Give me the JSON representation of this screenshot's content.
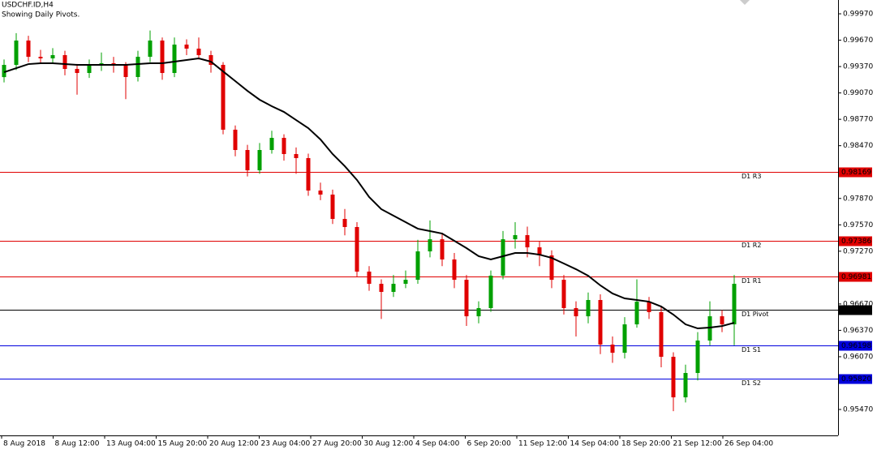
{
  "chart_data": {
    "type": "candlestick",
    "title": "USDCHF.ID,H4",
    "subtitle": "Showing Daily Pivots.",
    "ylim": [
      0.95175,
      1.00127
    ],
    "yticks": [
      {
        "value": 0.9997,
        "label": "0.99970"
      },
      {
        "value": 0.9967,
        "label": "0.99670"
      },
      {
        "value": 0.9937,
        "label": "0.99370"
      },
      {
        "value": 0.9907,
        "label": "0.99070"
      },
      {
        "value": 0.9877,
        "label": "0.98770"
      },
      {
        "value": 0.9847,
        "label": "0.98470"
      },
      {
        "value": 0.9787,
        "label": "0.97870"
      },
      {
        "value": 0.9757,
        "label": "0.97570"
      },
      {
        "value": 0.9727,
        "label": "0.97270"
      },
      {
        "value": 0.9667,
        "label": "0.96670"
      },
      {
        "value": 0.9637,
        "label": "0.96370"
      },
      {
        "value": 0.9607,
        "label": "0.96070"
      },
      {
        "value": 0.9547,
        "label": "0.95470"
      }
    ],
    "x_labels": [
      "8 Aug 2018",
      "8 Aug 12:00",
      "13 Aug 04:00",
      "15 Aug 20:00",
      "20 Aug 12:00",
      "23 Aug 04:00",
      "27 Aug 20:00",
      "30 Aug 12:00",
      "4 Sep 04:00",
      "6 Sep 20:00",
      "11 Sep 12:00",
      "14 Sep 04:00",
      "18 Sep 20:00",
      "21 Sep 12:00",
      "26 Sep 04:00"
    ],
    "up_color": "#00a000",
    "down_color": "#e00000",
    "ma_color": "#000000",
    "ohlc": [
      [
        0.9925,
        0.9945,
        0.9919,
        0.99389
      ],
      [
        0.99389,
        0.9975,
        0.9933,
        0.99666
      ],
      [
        0.99666,
        0.9972,
        0.9942,
        0.99481
      ],
      [
        0.99481,
        0.9956,
        0.994,
        0.99463
      ],
      [
        0.99463,
        0.9958,
        0.994,
        0.995
      ],
      [
        0.995,
        0.9955,
        0.9927,
        0.99343
      ],
      [
        0.99343,
        0.994,
        0.9905,
        0.99297
      ],
      [
        0.99297,
        0.9945,
        0.9924,
        0.99389
      ],
      [
        0.99389,
        0.9953,
        0.9932,
        0.99408
      ],
      [
        0.99408,
        0.9948,
        0.993,
        0.99389
      ],
      [
        0.99389,
        0.9942,
        0.99,
        0.99251
      ],
      [
        0.99251,
        0.9955,
        0.992,
        0.99481
      ],
      [
        0.99481,
        0.9978,
        0.9942,
        0.99666
      ],
      [
        0.99666,
        0.997,
        0.9922,
        0.99297
      ],
      [
        0.99297,
        0.997,
        0.9925,
        0.9962
      ],
      [
        0.9962,
        0.9968,
        0.995,
        0.99574
      ],
      [
        0.99574,
        0.997,
        0.9945,
        0.995
      ],
      [
        0.995,
        0.9955,
        0.993,
        0.99389
      ],
      [
        0.99389,
        0.9942,
        0.986,
        0.98652
      ],
      [
        0.98652,
        0.987,
        0.9835,
        0.98421
      ],
      [
        0.98421,
        0.9848,
        0.9812,
        0.9819
      ],
      [
        0.9819,
        0.985,
        0.9815,
        0.98421
      ],
      [
        0.98421,
        0.9864,
        0.9838,
        0.98559
      ],
      [
        0.98559,
        0.986,
        0.983,
        0.98375
      ],
      [
        0.98375,
        0.9845,
        0.9815,
        0.98329
      ],
      [
        0.98329,
        0.9838,
        0.979,
        0.9796
      ],
      [
        0.9796,
        0.9805,
        0.9785,
        0.97914
      ],
      [
        0.97914,
        0.9797,
        0.9758,
        0.97637
      ],
      [
        0.97637,
        0.9775,
        0.9745,
        0.97545
      ],
      [
        0.97545,
        0.976,
        0.9698,
        0.97038
      ],
      [
        0.97038,
        0.971,
        0.9682,
        0.96899
      ],
      [
        0.96899,
        0.9695,
        0.965,
        0.96807
      ],
      [
        0.96807,
        0.97,
        0.9675,
        0.96899
      ],
      [
        0.96899,
        0.9705,
        0.9685,
        0.96945
      ],
      [
        0.96945,
        0.974,
        0.969,
        0.97268
      ],
      [
        0.97268,
        0.9762,
        0.972,
        0.97406
      ],
      [
        0.97406,
        0.9748,
        0.971,
        0.97176
      ],
      [
        0.97176,
        0.9725,
        0.9685,
        0.96945
      ],
      [
        0.96945,
        0.97,
        0.9642,
        0.9653
      ],
      [
        0.9653,
        0.967,
        0.9645,
        0.96623
      ],
      [
        0.96623,
        0.9705,
        0.9658,
        0.96992
      ],
      [
        0.96992,
        0.975,
        0.9695,
        0.97406
      ],
      [
        0.97406,
        0.976,
        0.973,
        0.97453
      ],
      [
        0.97453,
        0.9755,
        0.972,
        0.97314
      ],
      [
        0.97314,
        0.9738,
        0.971,
        0.97222
      ],
      [
        0.97222,
        0.9728,
        0.9685,
        0.96945
      ],
      [
        0.96945,
        0.97,
        0.9655,
        0.96623
      ],
      [
        0.96623,
        0.967,
        0.963,
        0.9653
      ],
      [
        0.9653,
        0.968,
        0.9645,
        0.96715
      ],
      [
        0.96715,
        0.9678,
        0.961,
        0.96208
      ],
      [
        0.96208,
        0.963,
        0.96,
        0.96115
      ],
      [
        0.96115,
        0.9652,
        0.9605,
        0.96438
      ],
      [
        0.96438,
        0.9695,
        0.964,
        0.96696
      ],
      [
        0.96696,
        0.9675,
        0.965,
        0.96577
      ],
      [
        0.96577,
        0.9665,
        0.9595,
        0.96069
      ],
      [
        0.96069,
        0.9612,
        0.9545,
        0.95608
      ],
      [
        0.95608,
        0.9598,
        0.9555,
        0.95885
      ],
      [
        0.95885,
        0.9635,
        0.958,
        0.96254
      ],
      [
        0.96254,
        0.967,
        0.962,
        0.9653
      ],
      [
        0.9653,
        0.966,
        0.9635,
        0.96438
      ],
      [
        0.96438,
        0.97,
        0.962,
        0.96899
      ]
    ],
    "ma": [
      0.99306,
      0.99352,
      0.99398,
      0.99408,
      0.99408,
      0.99398,
      0.99389,
      0.99389,
      0.99389,
      0.99389,
      0.99389,
      0.99398,
      0.99408,
      0.99408,
      0.99426,
      0.99445,
      0.99463,
      0.99426,
      0.99315,
      0.99205,
      0.99094,
      0.98993,
      0.98919,
      0.98854,
      0.98762,
      0.9867,
      0.98541,
      0.98375,
      0.98237,
      0.9808,
      0.97886,
      0.97748,
      0.97674,
      0.976,
      0.97526,
      0.97499,
      0.97471,
      0.97388,
      0.97305,
      0.97213,
      0.97176,
      0.97213,
      0.9725,
      0.9725,
      0.97231,
      0.97194,
      0.9713,
      0.97065,
      0.96991,
      0.96881,
      0.96789,
      0.96733,
      0.96715,
      0.96696,
      0.96641,
      0.96549,
      0.96438,
      0.96392,
      0.96401,
      0.96419,
      0.96456
    ],
    "levels": {
      "names": [
        "D1 R3",
        "D1 R2",
        "D1 R1",
        "D1 Pivot",
        "D1 S1",
        "D1 S2"
      ],
      "values": [
        0.98169,
        0.97386,
        0.96981,
        0.96603,
        0.96198,
        0.9582
      ],
      "value_labels": [
        "0.98169",
        "0.97386",
        "0.96981",
        "0.96603",
        "0.96198",
        "0.95820"
      ],
      "colors": [
        "#e00000",
        "#e00000",
        "#e00000",
        "#000000",
        "#0000dd",
        "#0000dd"
      ]
    }
  }
}
